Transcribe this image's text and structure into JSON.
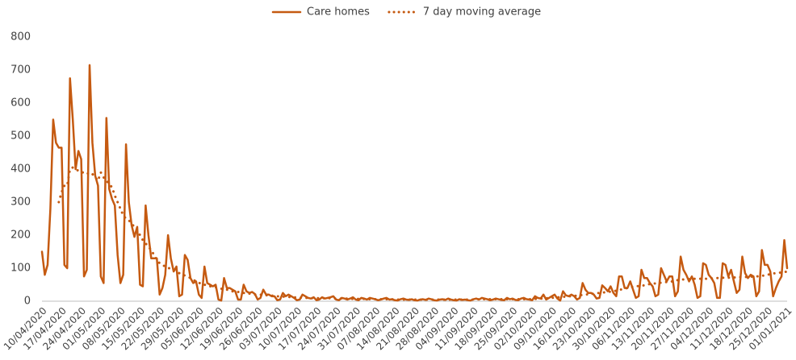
{
  "chart_data": {
    "type": "line",
    "categories": [
      "10/04/2020",
      null,
      null,
      null,
      null,
      null,
      null,
      "17/04/2020",
      null,
      null,
      null,
      null,
      null,
      null,
      "24/04/2020",
      null,
      null,
      null,
      null,
      null,
      null,
      "01/05/2020",
      null,
      null,
      null,
      null,
      null,
      null,
      "08/05/2020",
      null,
      null,
      null,
      null,
      null,
      null,
      "15/05/2020",
      null,
      null,
      null,
      null,
      null,
      null,
      "22/05/2020",
      null,
      null,
      null,
      null,
      null,
      null,
      "29/05/2020",
      null,
      null,
      null,
      null,
      null,
      null,
      "05/06/2020",
      null,
      null,
      null,
      null,
      null,
      null,
      "12/06/2020",
      null,
      null,
      null,
      null,
      null,
      null,
      "19/06/2020",
      null,
      null,
      null,
      null,
      null,
      null,
      "26/06/2020",
      null,
      null,
      null,
      null,
      null,
      null,
      "03/07/2020",
      null,
      null,
      null,
      null,
      null,
      null,
      "10/07/2020",
      null,
      null,
      null,
      null,
      null,
      null,
      "17/07/2020",
      null,
      null,
      null,
      null,
      null,
      null,
      "24/07/2020",
      null,
      null,
      null,
      null,
      null,
      null,
      "31/07/2020",
      null,
      null,
      null,
      null,
      null,
      null,
      "07/08/2020",
      null,
      null,
      null,
      null,
      null,
      null,
      "14/08/2020",
      null,
      null,
      null,
      null,
      null,
      null,
      "21/08/2020",
      null,
      null,
      null,
      null,
      null,
      null,
      "28/08/2020",
      null,
      null,
      null,
      null,
      null,
      null,
      "04/09/2020",
      null,
      null,
      null,
      null,
      null,
      null,
      "11/09/2020",
      null,
      null,
      null,
      null,
      null,
      null,
      "18/09/2020",
      null,
      null,
      null,
      null,
      null,
      null,
      "25/09/2020",
      null,
      null,
      null,
      null,
      null,
      null,
      "02/10/2020",
      null,
      null,
      null,
      null,
      null,
      null,
      "09/10/2020",
      null,
      null,
      null,
      null,
      null,
      null,
      "16/10/2020",
      null,
      null,
      null,
      null,
      null,
      null,
      "23/10/2020",
      null,
      null,
      null,
      null,
      null,
      null,
      "30/10/2020",
      null,
      null,
      null,
      null,
      null,
      null,
      "06/11/2020",
      null,
      null,
      null,
      null,
      null,
      null,
      "13/11/2020",
      null,
      null,
      null,
      null,
      null,
      null,
      "20/11/2020",
      null,
      null,
      null,
      null,
      null,
      null,
      "27/11/2020",
      null,
      null,
      null,
      null,
      null,
      null,
      "04/12/2020",
      null,
      null,
      null,
      null,
      null,
      null,
      "11/12/2020",
      null,
      null,
      null,
      null,
      null,
      null,
      "18/12/2020",
      null,
      null,
      null,
      null,
      null,
      null,
      "25/12/2020",
      null,
      null,
      null,
      null,
      null,
      null,
      "01/01/2021"
    ],
    "series": [
      {
        "name": "Care homes",
        "color": "#c55a11",
        "style": "solid",
        "values": [
          150,
          80,
          110,
          280,
          550,
          480,
          465,
          465,
          110,
          100,
          675,
          550,
          400,
          455,
          430,
          75,
          95,
          715,
          480,
          380,
          350,
          75,
          55,
          555,
          340,
          310,
          290,
          140,
          55,
          80,
          475,
          300,
          230,
          195,
          225,
          50,
          45,
          290,
          200,
          130,
          130,
          130,
          20,
          40,
          80,
          200,
          130,
          90,
          105,
          15,
          20,
          140,
          125,
          70,
          55,
          60,
          20,
          10,
          105,
          55,
          50,
          45,
          50,
          5,
          2,
          70,
          40,
          40,
          35,
          30,
          5,
          5,
          50,
          30,
          25,
          28,
          22,
          5,
          10,
          35,
          20,
          20,
          15,
          15,
          3,
          5,
          25,
          15,
          20,
          15,
          10,
          3,
          5,
          20,
          15,
          10,
          8,
          12,
          3,
          5,
          12,
          8,
          10,
          12,
          15,
          5,
          3,
          10,
          8,
          5,
          8,
          12,
          5,
          3,
          10,
          8,
          5,
          10,
          8,
          6,
          3,
          5,
          8,
          10,
          5,
          6,
          3,
          2,
          6,
          8,
          5,
          4,
          6,
          3,
          2,
          5,
          6,
          4,
          8,
          6,
          3,
          2,
          5,
          6,
          4,
          8,
          5,
          3,
          2,
          6,
          4,
          5,
          3,
          2,
          6,
          8,
          5,
          10,
          8,
          6,
          3,
          5,
          8,
          6,
          4,
          3,
          10,
          6,
          8,
          4,
          3,
          8,
          10,
          6,
          5,
          3,
          15,
          10,
          8,
          20,
          5,
          10,
          15,
          20,
          8,
          2,
          30,
          18,
          15,
          20,
          15,
          5,
          10,
          55,
          35,
          25,
          25,
          20,
          8,
          10,
          48,
          40,
          30,
          45,
          25,
          15,
          75,
          75,
          40,
          40,
          60,
          35,
          10,
          15,
          95,
          70,
          70,
          55,
          45,
          15,
          20,
          100,
          80,
          60,
          75,
          75,
          15,
          30,
          135,
          95,
          80,
          60,
          75,
          50,
          10,
          15,
          115,
          110,
          80,
          70,
          55,
          10,
          10,
          115,
          110,
          75,
          95,
          60,
          25,
          35,
          135,
          85,
          70,
          80,
          75,
          15,
          30,
          155,
          110,
          110,
          90,
          15,
          40,
          60,
          75,
          185,
          100
        ]
      },
      {
        "name": "7 day moving average",
        "color": "#c55a11",
        "style": "dotted",
        "values": [
          null,
          null,
          null,
          null,
          null,
          null,
          300,
          330,
          350,
          350,
          400,
          405,
          400,
          395,
          390,
          390,
          385,
          390,
          385,
          375,
          365,
          390,
          375,
          365,
          355,
          345,
          320,
          300,
          280,
          260,
          250,
          245,
          235,
          225,
          215,
          200,
          185,
          175,
          165,
          155,
          140,
          125,
          115,
          110,
          105,
          100,
          100,
          95,
          90,
          85,
          80,
          78,
          75,
          70,
          65,
          60,
          55,
          55,
          50,
          48,
          45,
          45,
          42,
          40,
          38,
          35,
          35,
          33,
          30,
          30,
          28,
          27,
          25,
          25,
          23,
          22,
          20,
          20,
          20,
          19,
          18,
          18,
          17,
          16,
          15,
          14,
          14,
          13,
          13,
          12,
          12,
          11,
          11,
          10,
          10,
          10,
          10,
          9,
          9,
          9,
          9,
          9,
          9,
          9,
          8,
          8,
          8,
          8,
          8,
          8,
          7,
          7,
          7,
          7,
          7,
          7,
          6,
          6,
          6,
          6,
          6,
          6,
          6,
          6,
          6,
          6,
          5,
          5,
          5,
          5,
          5,
          5,
          5,
          5,
          5,
          5,
          5,
          5,
          5,
          5,
          5,
          5,
          5,
          5,
          5,
          5,
          5,
          5,
          5,
          5,
          5,
          5,
          5,
          5,
          5,
          5,
          6,
          6,
          6,
          6,
          6,
          6,
          6,
          6,
          6,
          6,
          6,
          6,
          6,
          6,
          6,
          6,
          6,
          6,
          6,
          6,
          7,
          7,
          8,
          8,
          9,
          9,
          10,
          11,
          12,
          12,
          13,
          14,
          15,
          15,
          16,
          17,
          18,
          19,
          20,
          21,
          22,
          23,
          24,
          25,
          26,
          27,
          28,
          29,
          30,
          32,
          34,
          36,
          38,
          40,
          42,
          44,
          45,
          46,
          47,
          48,
          50,
          52,
          53,
          54,
          55,
          56,
          57,
          58,
          59,
          60,
          62,
          64,
          65,
          66,
          66,
          67,
          67,
          68,
          68,
          68,
          68,
          68,
          69,
          69,
          70,
          70,
          70,
          71,
          71,
          71,
          72,
          72,
          72,
          73,
          73,
          73,
          74,
          74,
          75,
          75,
          76,
          77,
          78,
          80,
          82,
          84,
          85,
          86,
          87,
          88,
          90
        ]
      }
    ],
    "ylim": [
      0,
      800
    ],
    "yticks": [
      0,
      100,
      200,
      300,
      400,
      500,
      600,
      700,
      800
    ],
    "legend": "top"
  }
}
